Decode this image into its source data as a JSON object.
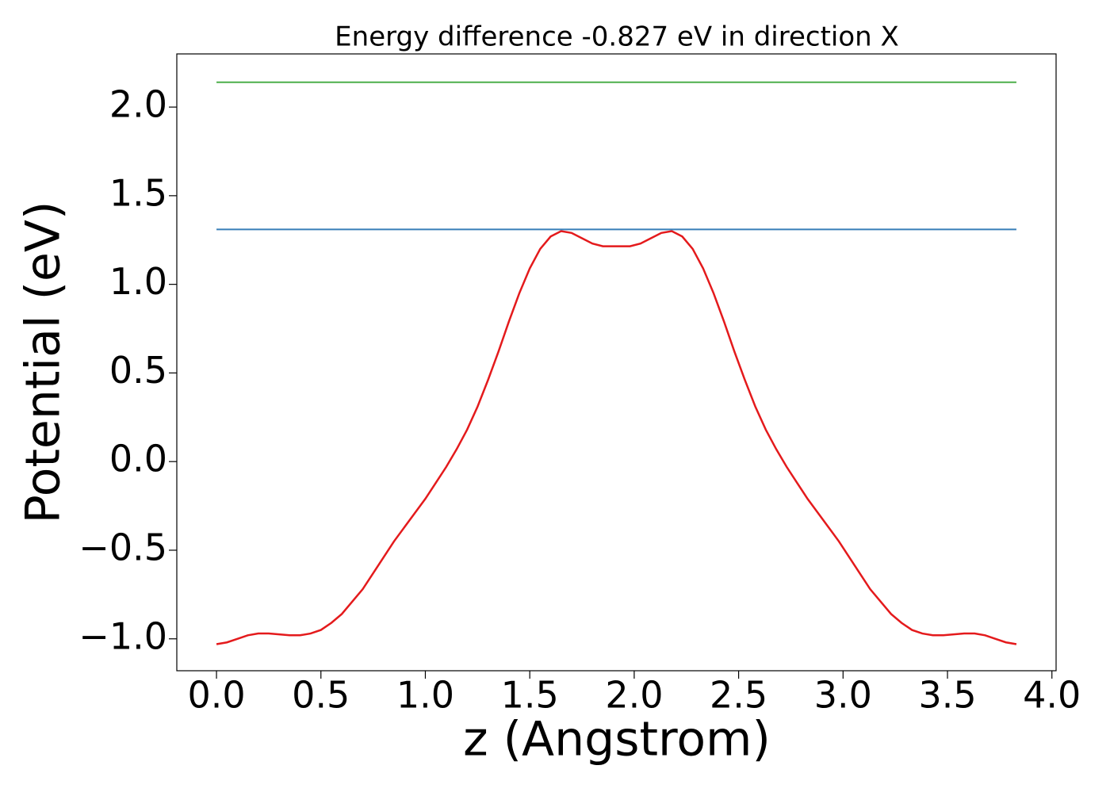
{
  "chart_data": {
    "type": "line",
    "title": "Energy difference -0.827 eV in direction X",
    "xlabel": "z (Angstrom)",
    "ylabel": "Potential (eV)",
    "xlim": [
      -0.19,
      4.02
    ],
    "ylim": [
      -1.18,
      2.3
    ],
    "xticks": [
      {
        "value": 0,
        "label": "0.0"
      },
      0.5,
      {
        "value": 1,
        "label": "1.0"
      },
      1.5,
      {
        "value": 2,
        "label": "2.0"
      },
      2.5,
      {
        "value": 3,
        "label": "3.0"
      },
      3.5,
      {
        "value": 4,
        "label": "4.0"
      }
    ],
    "yticks": [
      {
        "value": -1,
        "label": "−1.0"
      },
      {
        "value": -0.5,
        "label": "−0.5"
      },
      {
        "value": 0,
        "label": "0.0"
      },
      0.5,
      {
        "value": 1,
        "label": "1.0"
      },
      1.5,
      {
        "value": 2,
        "label": "2.0"
      }
    ],
    "grid": false,
    "series": [
      {
        "color": "#e41a1c",
        "x": [
          0,
          0.05,
          0.1,
          0.15,
          0.2,
          0.25,
          0.3,
          0.35,
          0.4,
          0.45,
          0.5,
          0.55,
          0.6,
          0.65,
          0.7,
          0.75,
          0.8,
          0.85,
          0.9,
          0.95,
          1.0,
          1.05,
          1.1,
          1.15,
          1.2,
          1.25,
          1.3,
          1.35,
          1.4,
          1.45,
          1.5,
          1.55,
          1.6,
          1.65,
          1.7,
          1.75,
          1.8,
          1.85,
          1.9,
          1.93,
          1.98,
          2.03,
          2.08,
          2.13,
          2.18,
          2.23,
          2.28,
          2.33,
          2.38,
          2.43,
          2.48,
          2.53,
          2.58,
          2.63,
          2.68,
          2.73,
          2.78,
          2.83,
          2.88,
          2.93,
          2.98,
          3.03,
          3.08,
          3.13,
          3.18,
          3.23,
          3.28,
          3.33,
          3.38,
          3.43,
          3.48,
          3.53,
          3.58,
          3.63,
          3.68,
          3.73,
          3.78,
          3.83
        ],
        "values": [
          -1.03,
          -1.02,
          -1.0,
          -0.98,
          -0.97,
          -0.97,
          -0.975,
          -0.98,
          -0.98,
          -0.97,
          -0.95,
          -0.91,
          -0.86,
          -0.79,
          -0.72,
          -0.63,
          -0.54,
          -0.45,
          -0.37,
          -0.29,
          -0.21,
          -0.12,
          -0.03,
          0.07,
          0.18,
          0.31,
          0.46,
          0.62,
          0.79,
          0.95,
          1.09,
          1.2,
          1.27,
          1.3,
          1.29,
          1.26,
          1.23,
          1.215,
          1.215,
          1.215,
          1.215,
          1.23,
          1.26,
          1.29,
          1.3,
          1.27,
          1.2,
          1.09,
          0.95,
          0.79,
          0.62,
          0.46,
          0.31,
          0.18,
          0.07,
          -0.03,
          -0.12,
          -0.21,
          -0.29,
          -0.37,
          -0.45,
          -0.54,
          -0.63,
          -0.72,
          -0.79,
          -0.86,
          -0.91,
          -0.95,
          -0.97,
          -0.98,
          -0.98,
          -0.975,
          -0.97,
          -0.97,
          -0.98,
          -1.0,
          -1.02,
          -1.03
        ]
      },
      {
        "color": "#377eb8",
        "x": [
          0,
          3.83
        ],
        "values": [
          1.31,
          1.31
        ]
      },
      {
        "color": "#4daf4a",
        "x": [
          0,
          3.83
        ],
        "values": [
          2.14,
          2.14
        ]
      }
    ]
  }
}
